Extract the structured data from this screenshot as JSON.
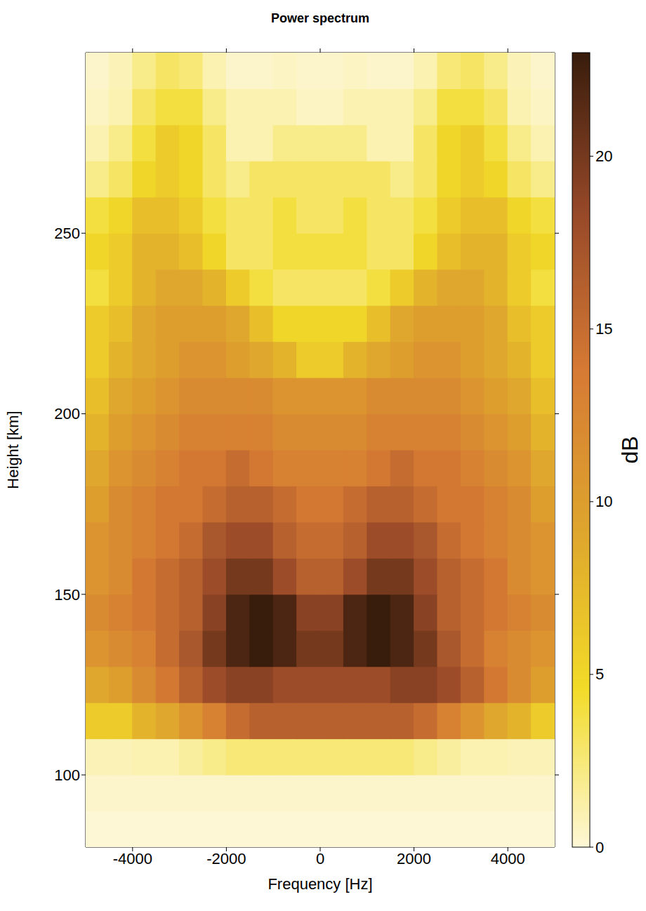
{
  "chart_data": {
    "type": "heatmap",
    "title": "Power spectrum",
    "xlabel": "Frequency [Hz]",
    "ylabel": "Height [km]",
    "xlim": [
      -5000,
      5000
    ],
    "ylim": [
      80,
      300
    ],
    "xticks": [
      -4000,
      -2000,
      0,
      2000,
      4000
    ],
    "yticks": [
      100,
      150,
      200,
      250
    ],
    "frequency_bins": [
      -5000,
      -4500,
      -4000,
      -3500,
      -3000,
      -2500,
      -2000,
      -1500,
      -1000,
      -500,
      0,
      500,
      1000,
      1500,
      2000,
      2500,
      3000,
      3500,
      4000,
      4500,
      5000
    ],
    "height_bins": [
      80,
      90,
      100,
      110,
      120,
      130,
      140,
      150,
      160,
      170,
      180,
      190,
      200,
      210,
      220,
      230,
      240,
      250,
      260,
      270,
      280,
      290,
      300
    ],
    "power_db": [
      [
        0,
        0,
        0,
        0,
        0,
        0,
        0,
        0,
        0,
        0,
        0,
        0,
        0,
        0,
        0,
        0,
        0,
        0,
        0,
        0
      ],
      [
        0.3,
        0.3,
        0.3,
        0.3,
        0.3,
        0.3,
        0.3,
        0.3,
        0.3,
        0.3,
        0.3,
        0.3,
        0.3,
        0.3,
        0.3,
        0.3,
        0.3,
        0.3,
        0.3,
        0.3
      ],
      [
        0.8,
        0.8,
        1,
        1,
        1.5,
        2,
        2.5,
        2.5,
        2.5,
        2.5,
        2.5,
        2.5,
        2.5,
        2.5,
        2,
        1.5,
        1,
        1,
        0.8,
        0.8
      ],
      [
        6,
        6,
        8,
        9,
        11,
        13,
        15,
        16,
        16,
        16,
        16,
        16,
        16,
        16,
        15,
        13,
        11,
        9,
        8,
        6
      ],
      [
        9,
        10,
        12,
        14,
        16,
        18,
        19,
        19,
        18,
        18,
        18,
        18,
        18,
        19,
        19,
        18,
        16,
        14,
        12,
        10
      ],
      [
        11,
        12,
        13,
        15,
        17,
        20,
        22,
        23,
        22,
        20,
        20,
        22,
        23,
        22,
        20,
        17,
        15,
        13,
        12,
        11
      ],
      [
        12,
        13,
        14,
        15,
        16,
        19,
        22,
        23,
        22,
        19,
        19,
        22,
        23,
        22,
        19,
        16,
        15,
        14,
        13,
        12
      ],
      [
        11,
        12,
        14,
        15,
        16,
        18,
        20,
        20,
        18,
        16,
        16,
        18,
        20,
        20,
        18,
        16,
        15,
        14,
        12,
        11
      ],
      [
        11,
        12,
        13,
        14,
        15,
        17,
        18,
        18,
        16,
        15,
        15,
        16,
        18,
        18,
        17,
        15,
        14,
        13,
        12,
        11
      ],
      [
        10,
        12,
        13,
        14,
        14,
        15,
        16,
        16,
        15,
        14,
        14,
        15,
        16,
        16,
        15,
        14,
        14,
        13,
        12,
        10
      ],
      [
        9,
        11,
        12,
        13,
        14,
        14,
        15,
        14,
        13,
        13,
        13,
        13,
        14,
        15,
        14,
        14,
        13,
        12,
        11,
        9
      ],
      [
        8,
        10,
        11,
        12,
        13,
        13,
        13,
        13,
        12,
        12,
        12,
        12,
        13,
        13,
        13,
        13,
        12,
        11,
        10,
        8
      ],
      [
        7,
        9,
        10,
        11,
        12,
        12,
        12,
        12,
        11,
        11,
        11,
        11,
        12,
        12,
        12,
        12,
        11,
        10,
        9,
        7
      ],
      [
        6,
        8,
        9,
        10,
        11,
        11,
        10,
        9,
        8,
        6,
        6,
        8,
        9,
        10,
        11,
        11,
        10,
        9,
        8,
        6
      ],
      [
        6,
        7,
        9,
        10,
        10,
        10,
        9,
        7,
        5,
        5,
        5,
        5,
        7,
        9,
        10,
        10,
        10,
        9,
        7,
        6
      ],
      [
        4,
        6,
        8,
        9,
        9,
        8,
        6,
        4,
        3,
        3,
        3,
        3,
        4,
        6,
        8,
        9,
        9,
        8,
        6,
        4
      ],
      [
        5,
        6,
        8,
        8,
        7,
        5,
        3,
        3,
        4,
        4,
        4,
        4,
        3,
        3,
        5,
        7,
        8,
        8,
        6,
        5
      ],
      [
        4,
        5,
        7,
        7,
        6,
        4,
        3,
        3,
        4,
        3,
        3,
        4,
        3,
        3,
        4,
        6,
        7,
        7,
        5,
        4
      ],
      [
        2,
        3,
        5,
        6,
        5,
        3,
        2,
        3,
        3,
        3,
        3,
        3,
        3,
        2,
        3,
        5,
        6,
        5,
        3,
        2
      ],
      [
        1,
        2,
        4,
        6,
        5,
        3,
        1,
        1,
        2,
        2,
        2,
        2,
        1,
        1,
        3,
        5,
        6,
        4,
        2,
        1
      ],
      [
        0.5,
        1,
        3,
        4,
        4,
        2,
        1,
        1,
        1,
        0.5,
        0.5,
        1,
        1,
        1,
        2,
        4,
        4,
        3,
        1,
        0.5
      ],
      [
        0.3,
        0.8,
        2,
        3,
        2.5,
        1,
        0.3,
        0.3,
        0.5,
        0.3,
        0.3,
        0.5,
        0.3,
        0.3,
        1,
        2.5,
        3,
        2,
        0.8,
        0.3
      ]
    ],
    "colorbar": {
      "label": "dB",
      "range": [
        0,
        23
      ],
      "ticks": [
        0,
        5,
        10,
        15,
        20
      ]
    }
  }
}
